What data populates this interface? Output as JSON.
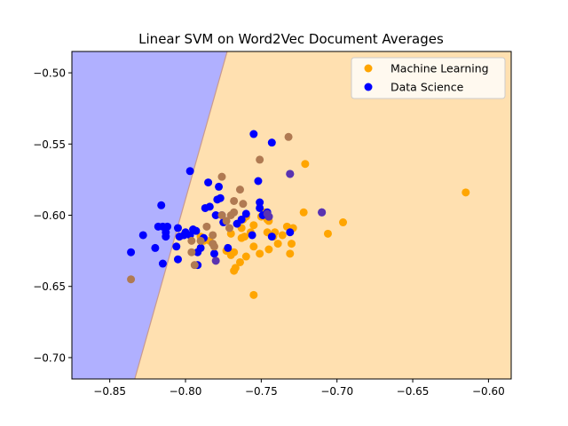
{
  "chart_data": {
    "type": "scatter",
    "title": "Linear SVM on Word2Vec Document Averages",
    "xlabel": "",
    "ylabel": "",
    "xlim": [
      -0.875,
      -0.585
    ],
    "ylim": [
      -0.715,
      -0.485
    ],
    "xticks": [
      -0.85,
      -0.8,
      -0.75,
      -0.7,
      -0.65,
      -0.6
    ],
    "xtick_labels": [
      "−0.85",
      "−0.80",
      "−0.75",
      "−0.70",
      "−0.65",
      "−0.60"
    ],
    "yticks": [
      -0.5,
      -0.55,
      -0.6,
      -0.65,
      -0.7
    ],
    "ytick_labels": [
      "−0.50",
      "−0.55",
      "−0.60",
      "−0.65",
      "−0.70"
    ],
    "grid": false,
    "legend_position": "top-right",
    "decision_boundary": {
      "points": [
        [
          -0.8335,
          -0.715
        ],
        [
          -0.7725,
          -0.485
        ]
      ],
      "region_colors": {
        "Data Science": "#b0b0ff",
        "Machine Learning": "#ffe0b0"
      },
      "line_color": "#c89a90"
    },
    "overlap_colors": {
      "Machine Learning": "#b07a52",
      "Data Science": "#5a33b0"
    },
    "series": [
      {
        "name": "Machine Learning",
        "color": "#ffa500",
        "points": [
          [
            -0.615,
            -0.584
          ],
          [
            -0.721,
            -0.564
          ],
          [
            -0.722,
            -0.598
          ],
          [
            -0.706,
            -0.613
          ],
          [
            -0.696,
            -0.605
          ],
          [
            -0.729,
            -0.609
          ],
          [
            -0.73,
            -0.62
          ],
          [
            -0.731,
            -0.627
          ],
          [
            -0.739,
            -0.62
          ],
          [
            -0.742,
            -0.615
          ],
          [
            -0.745,
            -0.624
          ],
          [
            -0.746,
            -0.612
          ],
          [
            -0.746,
            -0.603
          ],
          [
            -0.751,
            -0.627
          ],
          [
            -0.755,
            -0.607
          ],
          [
            -0.755,
            -0.622
          ],
          [
            -0.76,
            -0.601
          ],
          [
            -0.761,
            -0.615
          ],
          [
            -0.763,
            -0.609
          ],
          [
            -0.763,
            -0.616
          ],
          [
            -0.764,
            -0.633
          ],
          [
            -0.767,
            -0.637
          ],
          [
            -0.768,
            -0.626
          ],
          [
            -0.768,
            -0.639
          ],
          [
            -0.77,
            -0.613
          ],
          [
            -0.773,
            -0.625
          ],
          [
            -0.755,
            -0.656
          ],
          [
            -0.741,
            -0.612
          ],
          [
            -0.733,
            -0.608
          ],
          [
            -0.748,
            -0.598
          ],
          [
            -0.745,
            -0.604
          ],
          [
            -0.75,
            -0.601
          ],
          [
            -0.757,
            -0.612
          ],
          [
            -0.762,
            -0.603
          ],
          [
            -0.736,
            -0.614
          ],
          [
            -0.79,
            -0.615
          ],
          [
            -0.788,
            -0.618
          ],
          [
            -0.784,
            -0.618
          ],
          [
            -0.76,
            -0.629
          ],
          [
            -0.77,
            -0.628
          ]
        ]
      },
      {
        "name": "Data Science",
        "color": "#0000ff",
        "points": [
          [
            -0.836,
            -0.626
          ],
          [
            -0.828,
            -0.614
          ],
          [
            -0.82,
            -0.623
          ],
          [
            -0.818,
            -0.608
          ],
          [
            -0.816,
            -0.593
          ],
          [
            -0.815,
            -0.608
          ],
          [
            -0.813,
            -0.612
          ],
          [
            -0.813,
            -0.615
          ],
          [
            -0.812,
            -0.608
          ],
          [
            -0.815,
            -0.634
          ],
          [
            -0.806,
            -0.622
          ],
          [
            -0.805,
            -0.609
          ],
          [
            -0.804,
            -0.615
          ],
          [
            -0.805,
            -0.631
          ],
          [
            -0.801,
            -0.614
          ],
          [
            -0.8,
            -0.612
          ],
          [
            -0.797,
            -0.569
          ],
          [
            -0.797,
            -0.614
          ],
          [
            -0.795,
            -0.61
          ],
          [
            -0.793,
            -0.611
          ],
          [
            -0.792,
            -0.626
          ],
          [
            -0.792,
            -0.635
          ],
          [
            -0.79,
            -0.623
          ],
          [
            -0.788,
            -0.616
          ],
          [
            -0.787,
            -0.595
          ],
          [
            -0.785,
            -0.577
          ],
          [
            -0.784,
            -0.594
          ],
          [
            -0.781,
            -0.627
          ],
          [
            -0.78,
            -0.6
          ],
          [
            -0.779,
            -0.589
          ],
          [
            -0.778,
            -0.58
          ],
          [
            -0.777,
            -0.588
          ],
          [
            -0.776,
            -0.6
          ],
          [
            -0.775,
            -0.605
          ],
          [
            -0.772,
            -0.623
          ],
          [
            -0.766,
            -0.606
          ],
          [
            -0.763,
            -0.603
          ],
          [
            -0.76,
            -0.599
          ],
          [
            -0.756,
            -0.614
          ],
          [
            -0.755,
            -0.543
          ],
          [
            -0.752,
            -0.576
          ],
          [
            -0.751,
            -0.591
          ],
          [
            -0.751,
            -0.595
          ],
          [
            -0.749,
            -0.6
          ],
          [
            -0.746,
            -0.598
          ],
          [
            -0.745,
            -0.601
          ],
          [
            -0.743,
            -0.615
          ],
          [
            -0.743,
            -0.549
          ],
          [
            -0.731,
            -0.612
          ],
          [
            -0.731,
            -0.571
          ],
          [
            -0.71,
            -0.598
          ]
        ]
      },
      {
        "name": "",
        "color": "#b07a52",
        "points": [
          [
            -0.836,
            -0.645
          ],
          [
            -0.796,
            -0.618
          ],
          [
            -0.796,
            -0.626
          ],
          [
            -0.794,
            -0.635
          ],
          [
            -0.79,
            -0.618
          ],
          [
            -0.786,
            -0.608
          ],
          [
            -0.782,
            -0.614
          ],
          [
            -0.782,
            -0.62
          ],
          [
            -0.776,
            -0.573
          ],
          [
            -0.776,
            -0.6
          ],
          [
            -0.771,
            -0.609
          ],
          [
            -0.77,
            -0.6
          ],
          [
            -0.768,
            -0.59
          ],
          [
            -0.768,
            -0.598
          ],
          [
            -0.764,
            -0.582
          ],
          [
            -0.762,
            -0.592
          ],
          [
            -0.751,
            -0.561
          ],
          [
            -0.732,
            -0.545
          ],
          [
            -0.773,
            -0.604
          ],
          [
            -0.781,
            -0.622
          ]
        ]
      },
      {
        "name": "",
        "color": "#5a33b0",
        "points": [
          [
            -0.78,
            -0.632
          ],
          [
            -0.746,
            -0.599
          ],
          [
            -0.71,
            -0.598
          ],
          [
            -0.731,
            -0.571
          ],
          [
            -0.745,
            -0.601
          ]
        ]
      }
    ]
  }
}
